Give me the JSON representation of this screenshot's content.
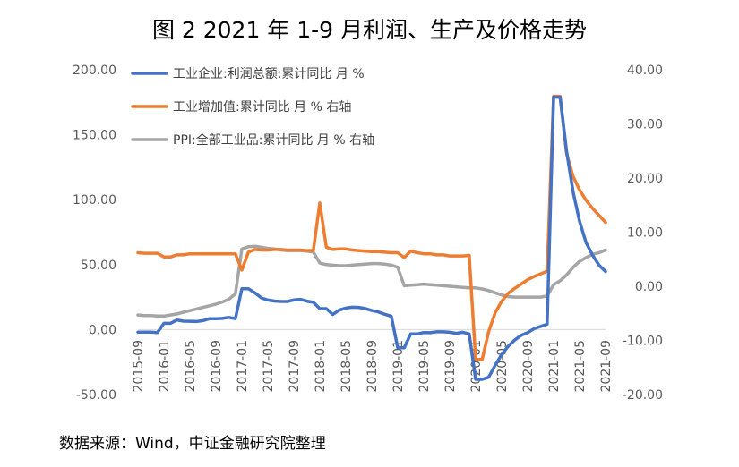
{
  "title": "图 2 2021 年 1-9 月利润、生产及价格走势",
  "source": "数据来源：Wind，中证金融研究院整理",
  "chart_data": {
    "type": "line",
    "title": "图 2 2021 年 1-9 月利润、生产及价格走势",
    "x": [
      "2015-09",
      "2015-10",
      "2015-11",
      "2015-12",
      "2016-01",
      "2016-02",
      "2016-03",
      "2016-04",
      "2016-05",
      "2016-06",
      "2016-07",
      "2016-08",
      "2016-09",
      "2016-10",
      "2016-11",
      "2016-12",
      "2017-01",
      "2017-02",
      "2017-03",
      "2017-04",
      "2017-05",
      "2017-06",
      "2017-07",
      "2017-08",
      "2017-09",
      "2017-10",
      "2017-11",
      "2017-12",
      "2018-01",
      "2018-02",
      "2018-03",
      "2018-04",
      "2018-05",
      "2018-06",
      "2018-07",
      "2018-08",
      "2018-09",
      "2018-10",
      "2018-11",
      "2018-12",
      "2019-01",
      "2019-02",
      "2019-03",
      "2019-04",
      "2019-05",
      "2019-06",
      "2019-07",
      "2019-08",
      "2019-09",
      "2019-10",
      "2019-11",
      "2019-12",
      "2020-01",
      "2020-02",
      "2020-03",
      "2020-04",
      "2020-05",
      "2020-06",
      "2020-07",
      "2020-08",
      "2020-09",
      "2020-10",
      "2020-11",
      "2020-12",
      "2021-01",
      "2021-02",
      "2021-03",
      "2021-04",
      "2021-05",
      "2021-06",
      "2021-07",
      "2021-08",
      "2021-09"
    ],
    "x_tick_labels": [
      "2015-09",
      "2016-01",
      "2016-05",
      "2016-09",
      "2017-01",
      "2017-05",
      "2017-09",
      "2018-01",
      "2018-05",
      "2018-09",
      "2019-01",
      "2019-05",
      "2019-09",
      "2020-01",
      "2020-05",
      "2020-09",
      "2021-01",
      "2021-05",
      "2021-09"
    ],
    "y_left": {
      "ticks": [
        "200.00",
        "150.00",
        "100.00",
        "50.00",
        "0.00",
        "-50.00"
      ],
      "ylim": [
        -50,
        200
      ]
    },
    "y_right": {
      "ticks": [
        "40.00",
        "30.00",
        "20.00",
        "10.00",
        "0.00",
        "-10.00",
        "-20.00"
      ],
      "ylim": [
        -20,
        40
      ]
    },
    "legend_position": "top-left",
    "grid": false,
    "series": [
      {
        "name": "工业企业:利润总额:累计同比 月 %",
        "axis": "left",
        "color": "#4472C4",
        "values": [
          -2.0,
          -2.0,
          -1.9,
          -2.3,
          4.8,
          4.8,
          7.4,
          6.5,
          6.4,
          6.2,
          6.9,
          8.4,
          8.4,
          8.6,
          9.4,
          8.5,
          31.5,
          31.5,
          28.3,
          24.4,
          22.7,
          22.0,
          21.6,
          21.6,
          22.8,
          23.3,
          21.9,
          21.0,
          16.1,
          16.1,
          11.6,
          15.0,
          16.5,
          17.2,
          17.1,
          16.2,
          14.7,
          13.6,
          11.8,
          10.3,
          -14.0,
          -14.0,
          -3.3,
          -3.4,
          -2.3,
          -2.4,
          -1.7,
          -1.7,
          -2.1,
          -2.9,
          -2.1,
          -3.3,
          -38.3,
          -38.3,
          -36.7,
          -27.4,
          -19.3,
          -12.8,
          -8.1,
          -4.4,
          -2.4,
          0.7,
          2.4,
          4.1,
          178.9,
          178.9,
          137.3,
          106.0,
          83.4,
          66.9,
          57.3,
          49.5,
          44.7
        ]
      },
      {
        "name": "工业增加值:累计同比 月 % 右轴",
        "axis": "right",
        "color": "#ED7D31",
        "values": [
          6.2,
          6.1,
          6.1,
          6.1,
          5.4,
          5.4,
          5.8,
          5.8,
          6.0,
          6.0,
          6.0,
          6.0,
          6.0,
          6.0,
          6.0,
          6.0,
          3.0,
          6.3,
          6.8,
          6.7,
          6.7,
          6.8,
          6.8,
          6.7,
          6.7,
          6.7,
          6.6,
          6.6,
          15.4,
          7.2,
          6.8,
          6.9,
          6.9,
          6.7,
          6.6,
          6.5,
          6.4,
          6.4,
          6.3,
          6.2,
          6.2,
          5.3,
          6.5,
          6.2,
          6.0,
          6.0,
          5.8,
          5.8,
          5.6,
          5.6,
          5.6,
          5.7,
          -13.5,
          -13.5,
          -8.4,
          -4.9,
          -2.8,
          -1.3,
          -0.4,
          0.4,
          1.2,
          1.8,
          2.3,
          2.8,
          35.1,
          35.1,
          24.5,
          20.3,
          17.8,
          15.9,
          14.4,
          13.1,
          11.8
        ]
      },
      {
        "name": "PPI:全部工业品:累计同比 月 % 右轴",
        "axis": "right",
        "color": "#A5A5A5",
        "values": [
          -5.3,
          -5.4,
          -5.4,
          -5.5,
          -5.5,
          -5.3,
          -5.1,
          -4.8,
          -4.5,
          -4.2,
          -3.9,
          -3.6,
          -3.3,
          -2.9,
          -2.4,
          -1.4,
          6.9,
          7.3,
          7.4,
          7.2,
          7.0,
          6.9,
          6.7,
          6.6,
          6.6,
          6.6,
          6.5,
          6.3,
          4.3,
          4.0,
          3.9,
          3.8,
          3.8,
          3.9,
          4.0,
          4.1,
          4.2,
          4.2,
          4.1,
          3.9,
          3.5,
          0.1,
          0.2,
          0.3,
          0.4,
          0.3,
          0.2,
          0.1,
          0.0,
          -0.1,
          -0.2,
          -0.3,
          -0.3,
          -0.5,
          -0.8,
          -1.2,
          -1.6,
          -1.9,
          -2.0,
          -2.0,
          -2.0,
          -2.0,
          -2.0,
          -1.8,
          0.3,
          1.0,
          2.1,
          3.5,
          4.6,
          5.3,
          5.9,
          6.2,
          6.7
        ]
      }
    ]
  }
}
